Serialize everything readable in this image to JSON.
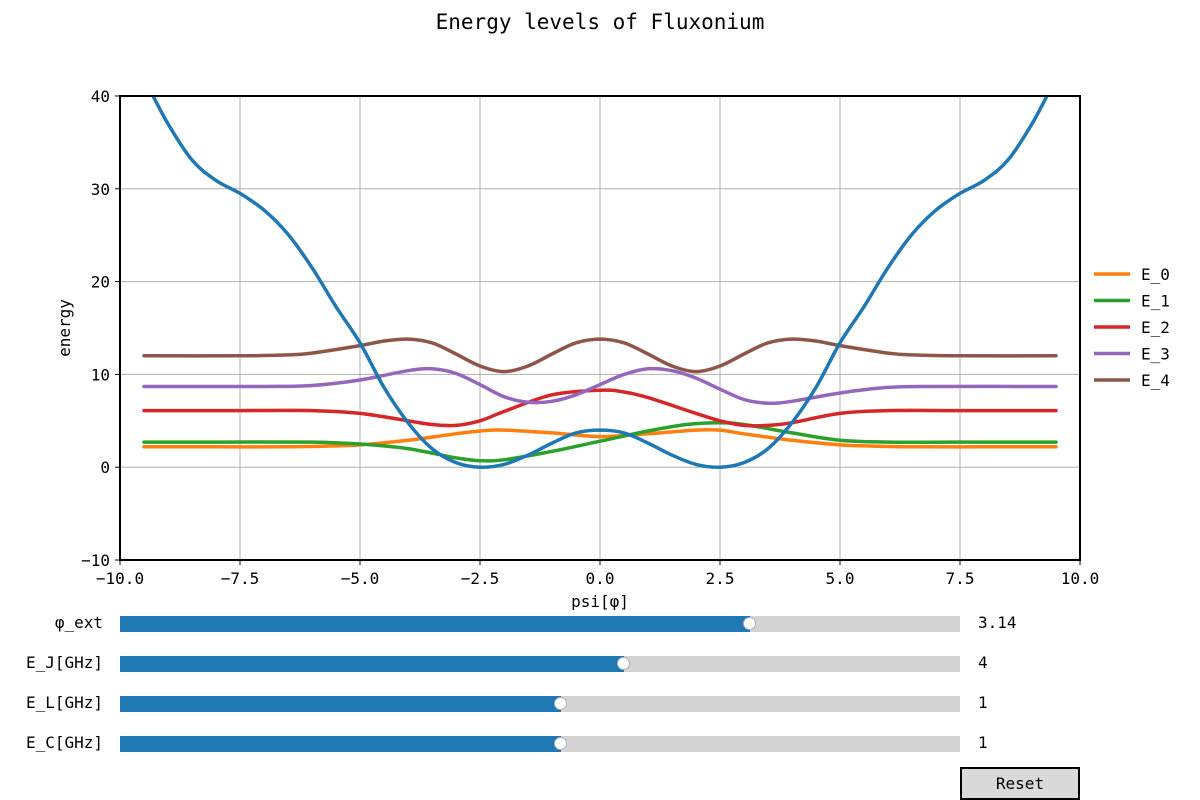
{
  "chart_data": {
    "type": "line",
    "title": "Energy levels of Fluxonium",
    "xlabel": "psi[φ]",
    "ylabel": "energy",
    "xlim": [
      -10.0,
      10.0
    ],
    "ylim": [
      -10,
      40
    ],
    "xticks": [
      "−10.0",
      "−7.5",
      "−5.0",
      "−2.5",
      "0.0",
      "2.5",
      "5.0",
      "7.5",
      "10.0"
    ],
    "yticks": [
      "−10",
      "0",
      "10",
      "20",
      "30",
      "40"
    ],
    "grid": true,
    "legend_position": "right",
    "potential": {
      "color": "#1f77b4",
      "x": [
        -9.4,
        -9.0,
        -8.5,
        -8.0,
        -7.5,
        -7.0,
        -6.5,
        -6.0,
        -5.5,
        -5.0,
        -4.5,
        -4.0,
        -3.5,
        -3.0,
        -2.5,
        -2.0,
        -1.5,
        -1.0,
        -0.5,
        0.0,
        0.5,
        1.0,
        1.5,
        2.0,
        2.5,
        3.0,
        3.5,
        4.0,
        4.5,
        5.0,
        5.5,
        6.0,
        6.5,
        7.0,
        7.5,
        8.0,
        8.5,
        9.0,
        9.4
      ],
      "y": [
        40.9,
        37.0,
        33.1,
        30.9,
        29.5,
        27.7,
        25.1,
        21.5,
        17.3,
        13.4,
        8.6,
        4.8,
        2.0,
        0.5,
        0.0,
        0.3,
        1.3,
        2.6,
        3.7,
        4.0,
        3.7,
        2.6,
        1.3,
        0.3,
        0.0,
        0.5,
        2.0,
        4.8,
        8.6,
        13.4,
        17.3,
        21.5,
        25.1,
        27.7,
        29.5,
        30.9,
        33.1,
        37.0,
        40.9
      ]
    },
    "series": [
      {
        "name": "E_0",
        "color": "#ff7f0e",
        "x": [
          -9.5,
          -8.0,
          -6.5,
          -5.5,
          -5.0,
          -4.0,
          -3.0,
          -2.5,
          -2.0,
          -1.0,
          0.0,
          1.0,
          2.0,
          2.5,
          3.0,
          4.0,
          5.0,
          5.5,
          6.5,
          8.0,
          9.5
        ],
        "y": [
          2.2,
          2.2,
          2.2,
          2.3,
          2.4,
          2.9,
          3.6,
          3.9,
          4.0,
          3.7,
          3.3,
          3.6,
          4.0,
          4.0,
          3.6,
          2.9,
          2.4,
          2.3,
          2.2,
          2.2,
          2.2
        ]
      },
      {
        "name": "E_1",
        "color": "#2ca02c",
        "x": [
          -9.5,
          -8.0,
          -6.0,
          -5.0,
          -4.0,
          -3.0,
          -2.5,
          -2.0,
          -1.0,
          0.0,
          1.0,
          1.8,
          2.5,
          3.0,
          4.0,
          5.0,
          6.0,
          8.0,
          9.5
        ],
        "y": [
          2.7,
          2.7,
          2.7,
          2.5,
          2.0,
          1.0,
          0.7,
          0.8,
          1.7,
          2.8,
          3.9,
          4.6,
          4.8,
          4.6,
          3.7,
          2.9,
          2.7,
          2.7,
          2.7
        ]
      },
      {
        "name": "E_2",
        "color": "#d62728",
        "x": [
          -9.5,
          -7.5,
          -6.0,
          -5.0,
          -4.0,
          -3.5,
          -3.0,
          -2.5,
          -2.0,
          -1.0,
          0.0,
          0.5,
          1.0,
          2.0,
          2.5,
          3.0,
          3.5,
          4.0,
          5.0,
          6.0,
          7.5,
          9.5
        ],
        "y": [
          6.1,
          6.1,
          6.1,
          5.8,
          5.0,
          4.6,
          4.5,
          5.0,
          6.0,
          7.8,
          8.3,
          8.1,
          7.5,
          5.8,
          5.0,
          4.5,
          4.5,
          4.8,
          5.8,
          6.1,
          6.1,
          6.1
        ]
      },
      {
        "name": "E_3",
        "color": "#9467bd",
        "x": [
          -9.5,
          -7.0,
          -6.0,
          -5.0,
          -4.0,
          -3.5,
          -3.0,
          -2.5,
          -2.0,
          -1.5,
          -1.0,
          -0.5,
          0.0,
          0.5,
          1.0,
          1.5,
          2.0,
          2.5,
          3.0,
          3.5,
          4.0,
          5.0,
          6.0,
          7.0,
          9.5
        ],
        "y": [
          8.7,
          8.7,
          8.8,
          9.4,
          10.4,
          10.6,
          10.1,
          8.9,
          7.6,
          7.0,
          7.1,
          7.8,
          8.9,
          10.0,
          10.6,
          10.4,
          9.6,
          8.4,
          7.3,
          6.9,
          7.1,
          8.0,
          8.6,
          8.7,
          8.7
        ]
      },
      {
        "name": "E_4",
        "color": "#8c564b",
        "x": [
          -9.5,
          -7.5,
          -6.5,
          -6.0,
          -5.0,
          -4.5,
          -4.0,
          -3.5,
          -3.0,
          -2.5,
          -2.0,
          -1.5,
          -1.0,
          -0.5,
          0.0,
          0.5,
          1.0,
          1.5,
          2.0,
          2.5,
          3.0,
          3.5,
          4.0,
          4.5,
          5.0,
          6.0,
          6.5,
          7.5,
          9.5
        ],
        "y": [
          12.0,
          12.0,
          12.1,
          12.3,
          13.1,
          13.6,
          13.8,
          13.4,
          12.2,
          10.9,
          10.3,
          10.9,
          12.2,
          13.4,
          13.8,
          13.4,
          12.2,
          10.9,
          10.3,
          10.9,
          12.2,
          13.4,
          13.8,
          13.6,
          13.1,
          12.3,
          12.1,
          12.0,
          12.0
        ]
      }
    ]
  },
  "sliders": [
    {
      "label": "φ_ext",
      "value": "3.14",
      "fraction": 0.75
    },
    {
      "label": "E_J[GHz]",
      "value": "4",
      "fraction": 0.6
    },
    {
      "label": "E_L[GHz]",
      "value": "1",
      "fraction": 0.525
    },
    {
      "label": "E_C[GHz]",
      "value": "1",
      "fraction": 0.525
    }
  ],
  "reset_label": "Reset"
}
